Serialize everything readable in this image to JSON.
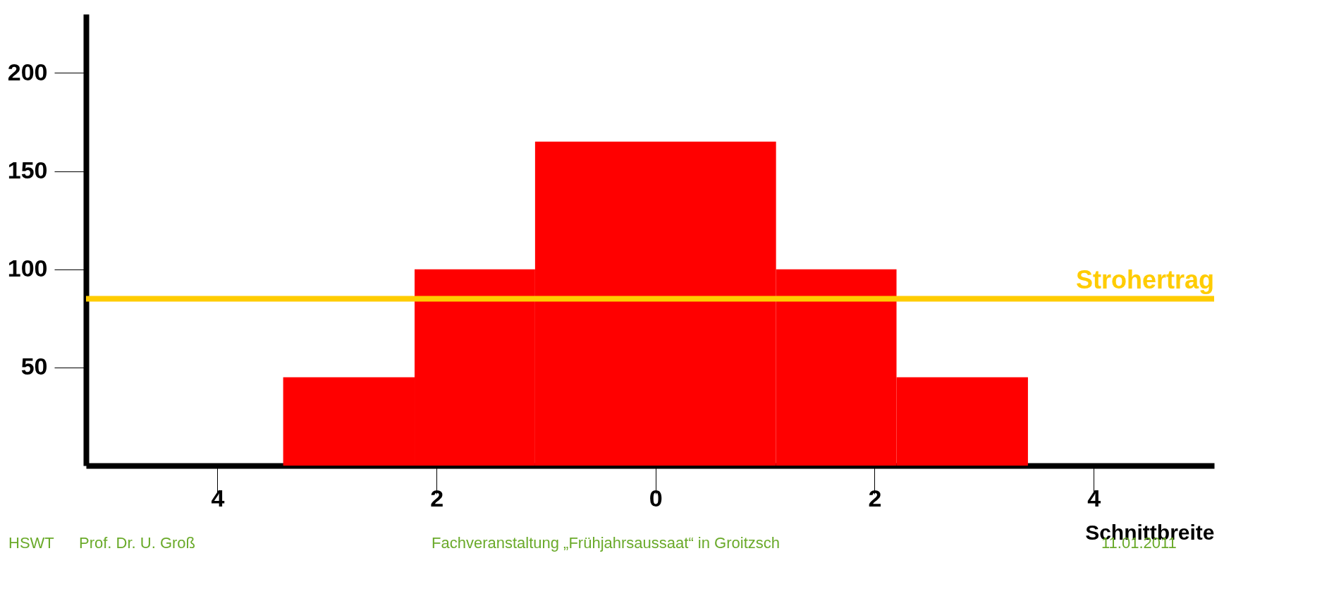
{
  "chart_data": {
    "type": "histogram",
    "bins": [
      -3.4,
      -2.2,
      -1.1,
      1.1,
      2.2,
      3.4
    ],
    "values": [
      45,
      100,
      165,
      100,
      45
    ],
    "color": "#ff0000",
    "xlabel": "Schnittbreite",
    "xlim": [
      -5.2,
      5.1
    ],
    "xticks": [
      {
        "value": -4,
        "label": "4"
      },
      {
        "value": -2,
        "label": "2"
      },
      {
        "value": 0,
        "label": "0"
      },
      {
        "value": 2,
        "label": "2"
      },
      {
        "value": 4,
        "label": "4"
      }
    ],
    "ylim": [
      0,
      230
    ],
    "yticks": [
      50,
      100,
      150,
      200
    ],
    "grid": false,
    "ref_lines": [
      {
        "axis": "y",
        "value": 85,
        "label": "Strohertrag",
        "color": "#ffcc00"
      }
    ],
    "annotations": [
      "HSWT",
      "Prof. Dr. U. Groß",
      "Fachveranstaltung „Frühjahrsaussaat“ in Groitzsch",
      "11.01.2011"
    ]
  }
}
